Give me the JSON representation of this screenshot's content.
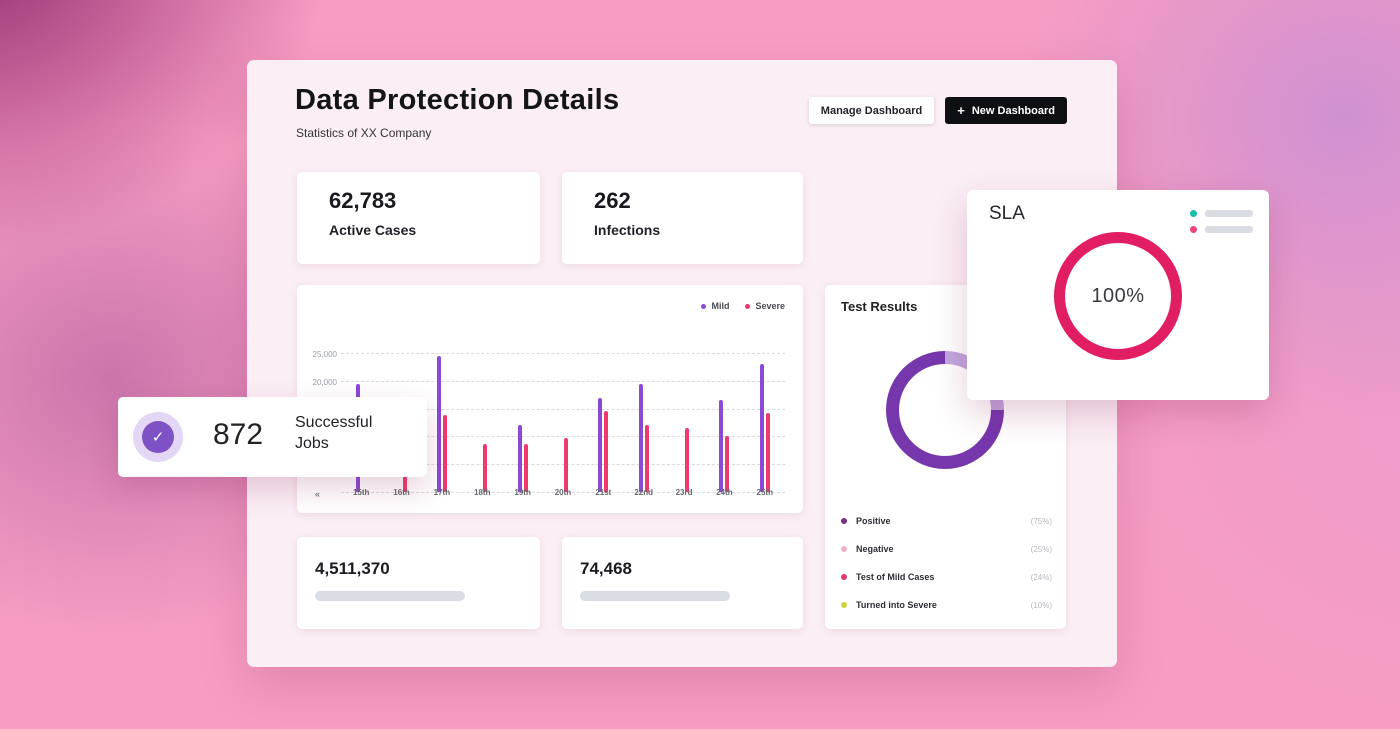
{
  "header": {
    "title": "Data Protection Details",
    "subtitle": "Statistics of XX Company",
    "manage_button": "Manage Dashboard",
    "plus_icon": "+",
    "new_button": "New Dashboard"
  },
  "stats": {
    "active_cases": {
      "value": "62,783",
      "label": "Active Cases"
    },
    "infections": {
      "value": "262",
      "label": "Infections"
    },
    "records": {
      "value": "4,511,370"
    },
    "tests": {
      "value": "74,468"
    }
  },
  "jobs_card": {
    "value": "872",
    "label": "Successful Jobs",
    "check_icon": "✓",
    "icon_color": "#7e52c4",
    "icon_bg": "#e4d6f5"
  },
  "sla_card": {
    "title": "SLA",
    "value": "100%",
    "ring_color": "#e11d63",
    "legend": [
      {
        "color": "#14c0a6"
      },
      {
        "color": "#ef447e"
      }
    ]
  },
  "test_results": {
    "title": "Test Results",
    "donut": {
      "segments": [
        {
          "color": "#c0a7dd",
          "pct": 25
        },
        {
          "color": "#7637ad",
          "pct": 75
        }
      ]
    },
    "legend": [
      {
        "label": "Positive",
        "pct": "(75%)",
        "color": "#7c2c8c"
      },
      {
        "label": "Negative",
        "pct": "(25%)",
        "color": "#f0aed0"
      },
      {
        "label": "Test of Mild Cases",
        "pct": "(24%)",
        "color": "#e23a6d"
      },
      {
        "label": "Turned into Severe",
        "pct": "(10%)",
        "color": "#cdd23e"
      }
    ]
  },
  "chart_data": {
    "type": "bar",
    "categories": [
      "15th",
      "16th",
      "17th",
      "18th",
      "19th",
      "20th",
      "21st",
      "22nd",
      "23rd",
      "24th",
      "25th"
    ],
    "series": [
      {
        "name": "Mild",
        "color": "#8a49d6",
        "values": [
          19500,
          0,
          24500,
          0,
          12000,
          0,
          17000,
          19500,
          0,
          16500,
          23000
        ]
      },
      {
        "name": "Severe",
        "color": "#ef3a6e",
        "values": [
          0,
          8700,
          13800,
          8700,
          8700,
          9700,
          14500,
          12000,
          11500,
          10000,
          14200
        ]
      }
    ],
    "ylim": [
      0,
      27000
    ],
    "ytick_labels": [
      "25,000",
      "20,000"
    ],
    "grid": "dashed-horizontal",
    "legend_position": "top-right",
    "pager_icon": "«"
  }
}
